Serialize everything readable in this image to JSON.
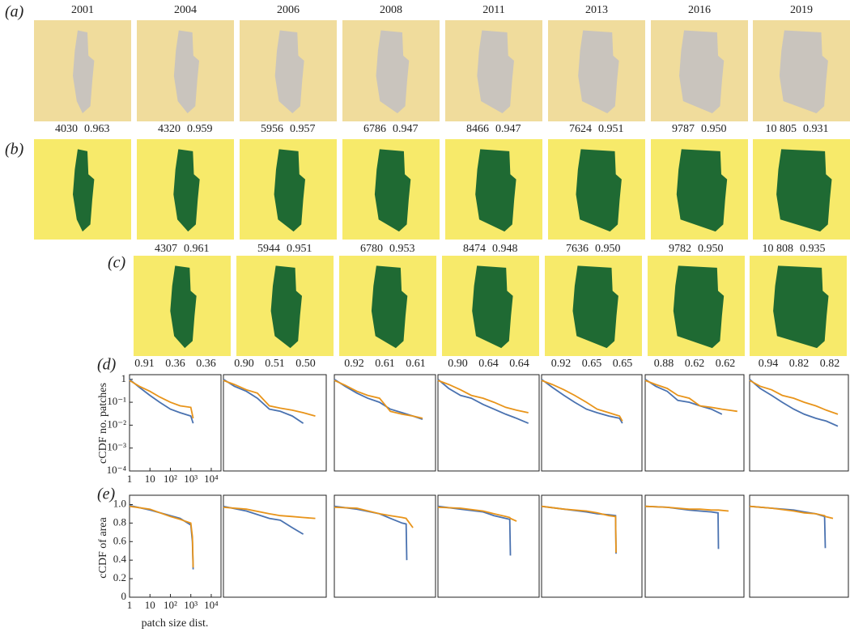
{
  "panel_labels": [
    "(a)",
    "(b)",
    "(c)",
    "(d)",
    "(e)"
  ],
  "years": [
    "2001",
    "2004",
    "2006",
    "2008",
    "2011",
    "2013",
    "2016",
    "2019"
  ],
  "row_b": [
    [
      "4030",
      "0.963"
    ],
    [
      "4320",
      "0.959"
    ],
    [
      "5956",
      "0.957"
    ],
    [
      "6786",
      "0.947"
    ],
    [
      "8466",
      "0.947"
    ],
    [
      "7624",
      "0.951"
    ],
    [
      "9787",
      "0.950"
    ],
    [
      "10 805",
      "0.931"
    ]
  ],
  "row_c": [
    [
      "4307",
      "0.961"
    ],
    [
      "5944",
      "0.951"
    ],
    [
      "6780",
      "0.953"
    ],
    [
      "8474",
      "0.948"
    ],
    [
      "7636",
      "0.950"
    ],
    [
      "9782",
      "0.950"
    ],
    [
      "10 808",
      "0.935"
    ]
  ],
  "row_d": [
    [
      "0.91",
      "0.36",
      "0.36"
    ],
    [
      "0.90",
      "0.51",
      "0.50"
    ],
    [
      "0.92",
      "0.61",
      "0.61"
    ],
    [
      "0.90",
      "0.64",
      "0.64"
    ],
    [
      "0.92",
      "0.65",
      "0.65"
    ],
    [
      "0.88",
      "0.62",
      "0.62"
    ],
    [
      "0.94",
      "0.82",
      "0.82"
    ]
  ],
  "y_label_d": "cCDF no. patches",
  "y_label_e": "cCDF of area",
  "x_label": "patch size dist.",
  "chart_data": [
    {
      "type": "line",
      "xlog": true,
      "ylog": true,
      "xlim": [
        1,
        30000
      ],
      "ylim": [
        0.0001,
        1.6
      ],
      "xticks": [
        1,
        10,
        {
          "value": 100,
          "label": "10²"
        },
        {
          "value": 1000,
          "label": "10³"
        },
        {
          "value": 10000,
          "label": "10⁴"
        }
      ],
      "yticks": [
        1,
        {
          "value": 0.1,
          "label": "10⁻¹"
        },
        {
          "value": 0.01,
          "label": "10⁻²"
        },
        {
          "value": 0.001,
          "label": "10⁻³"
        },
        {
          "value": 0.0001,
          "label": "10⁻⁴"
        }
      ],
      "x": [
        1,
        3,
        10,
        30,
        100,
        300,
        1000,
        1300
      ],
      "series": [
        {
          "color": "#4a72b0",
          "values": [
            1,
            0.45,
            0.2,
            0.1,
            0.05,
            0.035,
            0.025,
            0.012
          ]
        },
        {
          "color": "#e8941a",
          "values": [
            0.9,
            0.5,
            0.3,
            0.17,
            0.1,
            0.07,
            0.06,
            0.02
          ]
        }
      ]
    },
    {
      "type": "line",
      "xlog": true,
      "ylog": true,
      "xlim": [
        1,
        30000
      ],
      "ylim": [
        0.0001,
        1.6
      ],
      "x": [
        1,
        3,
        10,
        30,
        100,
        300,
        1000,
        3000,
        10000
      ],
      "series": [
        {
          "color": "#4a72b0",
          "values": [
            1,
            0.5,
            0.3,
            0.15,
            0.05,
            0.04,
            0.025,
            0.012,
            null
          ]
        },
        {
          "color": "#e8941a",
          "values": [
            0.9,
            0.6,
            0.35,
            0.25,
            0.07,
            0.055,
            0.045,
            0.035,
            0.025
          ]
        }
      ]
    },
    {
      "type": "line",
      "xlog": true,
      "ylog": true,
      "xlim": [
        1,
        30000
      ],
      "ylim": [
        0.0001,
        1.6
      ],
      "x": [
        1,
        3,
        10,
        30,
        100,
        300,
        1000,
        3000,
        8000
      ],
      "series": [
        {
          "color": "#4a72b0",
          "values": [
            1,
            0.5,
            0.25,
            0.15,
            0.1,
            0.05,
            0.035,
            0.025,
            0.018
          ]
        },
        {
          "color": "#e8941a",
          "values": [
            0.9,
            0.55,
            0.3,
            0.2,
            0.15,
            0.04,
            0.03,
            0.025,
            0.02
          ]
        }
      ]
    },
    {
      "type": "line",
      "xlog": true,
      "ylog": true,
      "xlim": [
        1,
        30000
      ],
      "ylim": [
        0.0001,
        1.6
      ],
      "x": [
        1,
        3,
        10,
        30,
        100,
        300,
        1000,
        3000,
        10000
      ],
      "series": [
        {
          "color": "#4a72b0",
          "values": [
            1,
            0.4,
            0.2,
            0.15,
            0.08,
            0.05,
            0.03,
            0.02,
            0.012
          ]
        },
        {
          "color": "#e8941a",
          "values": [
            0.9,
            0.6,
            0.35,
            0.2,
            0.15,
            0.1,
            0.06,
            0.045,
            0.035
          ]
        }
      ]
    },
    {
      "type": "line",
      "xlog": true,
      "ylog": true,
      "xlim": [
        1,
        30000
      ],
      "ylim": [
        0.0001,
        1.6
      ],
      "x": [
        1,
        3,
        10,
        30,
        100,
        300,
        1000,
        3000,
        4000
      ],
      "series": [
        {
          "color": "#4a72b0",
          "values": [
            1,
            0.45,
            0.2,
            0.1,
            0.05,
            0.035,
            0.025,
            0.02,
            0.012
          ]
        },
        {
          "color": "#e8941a",
          "values": [
            0.9,
            0.6,
            0.35,
            0.2,
            0.1,
            0.05,
            0.035,
            0.025,
            0.015
          ]
        }
      ]
    },
    {
      "type": "line",
      "xlog": true,
      "ylog": true,
      "xlim": [
        1,
        30000
      ],
      "ylim": [
        0.0001,
        1.6
      ],
      "x": [
        1,
        3,
        10,
        30,
        100,
        300,
        1000,
        3000,
        15000
      ],
      "series": [
        {
          "color": "#4a72b0",
          "values": [
            1,
            0.5,
            0.3,
            0.12,
            0.1,
            0.07,
            0.05,
            0.03,
            null
          ]
        },
        {
          "color": "#e8941a",
          "values": [
            0.9,
            0.6,
            0.4,
            0.2,
            0.15,
            0.07,
            0.06,
            0.05,
            0.04
          ]
        }
      ]
    },
    {
      "type": "line",
      "xlog": true,
      "ylog": true,
      "xlim": [
        1,
        30000
      ],
      "ylim": [
        0.0001,
        1.6
      ],
      "x": [
        1,
        3,
        10,
        30,
        100,
        300,
        1000,
        3000,
        10000
      ],
      "series": [
        {
          "color": "#4a72b0",
          "values": [
            1,
            0.4,
            0.2,
            0.1,
            0.05,
            0.03,
            0.02,
            0.015,
            0.009
          ]
        },
        {
          "color": "#e8941a",
          "values": [
            0.9,
            0.5,
            0.35,
            0.2,
            0.15,
            0.1,
            0.07,
            0.045,
            0.03
          ]
        }
      ]
    },
    {
      "type": "line",
      "xlog": true,
      "ylog": false,
      "xlim": [
        1,
        30000
      ],
      "ylim": [
        0,
        1.1
      ],
      "xticks": [
        1,
        10,
        {
          "value": 100,
          "label": "10²"
        },
        {
          "value": 1000,
          "label": "10³"
        },
        {
          "value": 10000,
          "label": "10⁴"
        }
      ],
      "yticks": [
        0,
        0.2,
        0.4,
        0.6,
        0.8,
        {
          "value": 1,
          "label": "1.0"
        }
      ],
      "x": [
        1,
        10,
        100,
        300,
        1000,
        1200,
        1300
      ],
      "series": [
        {
          "color": "#4a72b0",
          "values": [
            0.99,
            0.94,
            0.88,
            0.85,
            0.78,
            0.6,
            0.3
          ]
        },
        {
          "color": "#e8941a",
          "values": [
            0.98,
            0.95,
            0.87,
            0.84,
            0.8,
            0.65,
            0.32
          ]
        }
      ]
    },
    {
      "type": "line",
      "xlog": true,
      "ylog": false,
      "xlim": [
        1,
        30000
      ],
      "ylim": [
        0,
        1.1
      ],
      "x": [
        1,
        10,
        100,
        300,
        1000,
        3000,
        10000
      ],
      "series": [
        {
          "color": "#4a72b0",
          "values": [
            0.98,
            0.93,
            0.85,
            0.83,
            0.75,
            0.68,
            null
          ]
        },
        {
          "color": "#e8941a",
          "values": [
            0.97,
            0.95,
            0.9,
            0.88,
            0.87,
            0.86,
            0.85
          ]
        }
      ]
    },
    {
      "type": "line",
      "xlog": true,
      "ylog": false,
      "xlim": [
        1,
        30000
      ],
      "ylim": [
        0,
        1.1
      ],
      "x": [
        1,
        10,
        100,
        300,
        1000,
        1500,
        1600,
        3000
      ],
      "series": [
        {
          "color": "#4a72b0",
          "values": [
            0.98,
            0.95,
            0.9,
            0.85,
            0.8,
            0.79,
            0.4,
            null
          ]
        },
        {
          "color": "#e8941a",
          "values": [
            0.97,
            0.96,
            0.9,
            0.88,
            0.86,
            0.85,
            0.84,
            0.75
          ]
        }
      ]
    },
    {
      "type": "line",
      "xlog": true,
      "ylog": false,
      "xlim": [
        1,
        30000
      ],
      "ylim": [
        0,
        1.1
      ],
      "x": [
        1,
        10,
        100,
        300,
        1000,
        1500,
        1600,
        3000
      ],
      "series": [
        {
          "color": "#4a72b0",
          "values": [
            0.98,
            0.95,
            0.92,
            0.88,
            0.85,
            0.84,
            0.45,
            null
          ]
        },
        {
          "color": "#e8941a",
          "values": [
            0.97,
            0.96,
            0.93,
            0.9,
            0.87,
            0.86,
            0.85,
            0.82
          ]
        }
      ]
    },
    {
      "type": "line",
      "xlog": true,
      "ylog": false,
      "xlim": [
        1,
        30000
      ],
      "ylim": [
        0,
        1.1
      ],
      "x": [
        1,
        10,
        100,
        300,
        1000,
        2000,
        2100
      ],
      "series": [
        {
          "color": "#4a72b0",
          "values": [
            0.98,
            0.95,
            0.92,
            0.9,
            0.89,
            0.88,
            0.47
          ]
        },
        {
          "color": "#e8941a",
          "values": [
            0.98,
            0.95,
            0.93,
            0.91,
            0.88,
            0.87,
            0.48
          ]
        }
      ]
    },
    {
      "type": "line",
      "xlog": true,
      "ylog": false,
      "xlim": [
        1,
        30000
      ],
      "ylim": [
        0,
        1.1
      ],
      "x": [
        1,
        10,
        100,
        300,
        1000,
        2000,
        2100,
        6000
      ],
      "series": [
        {
          "color": "#4a72b0",
          "values": [
            0.98,
            0.97,
            0.94,
            0.93,
            0.92,
            0.91,
            0.52,
            null
          ]
        },
        {
          "color": "#e8941a",
          "values": [
            0.98,
            0.97,
            0.95,
            0.95,
            0.94,
            0.94,
            0.94,
            0.93
          ]
        }
      ]
    },
    {
      "type": "line",
      "xlog": true,
      "ylog": false,
      "xlim": [
        1,
        30000
      ],
      "ylim": [
        0,
        1.1
      ],
      "x": [
        1,
        10,
        100,
        300,
        1000,
        2500,
        2700,
        6000
      ],
      "series": [
        {
          "color": "#4a72b0",
          "values": [
            0.98,
            0.96,
            0.94,
            0.92,
            0.9,
            0.87,
            0.53,
            null
          ]
        },
        {
          "color": "#e8941a",
          "values": [
            0.98,
            0.96,
            0.93,
            0.91,
            0.9,
            0.88,
            0.87,
            0.85
          ]
        }
      ]
    }
  ]
}
